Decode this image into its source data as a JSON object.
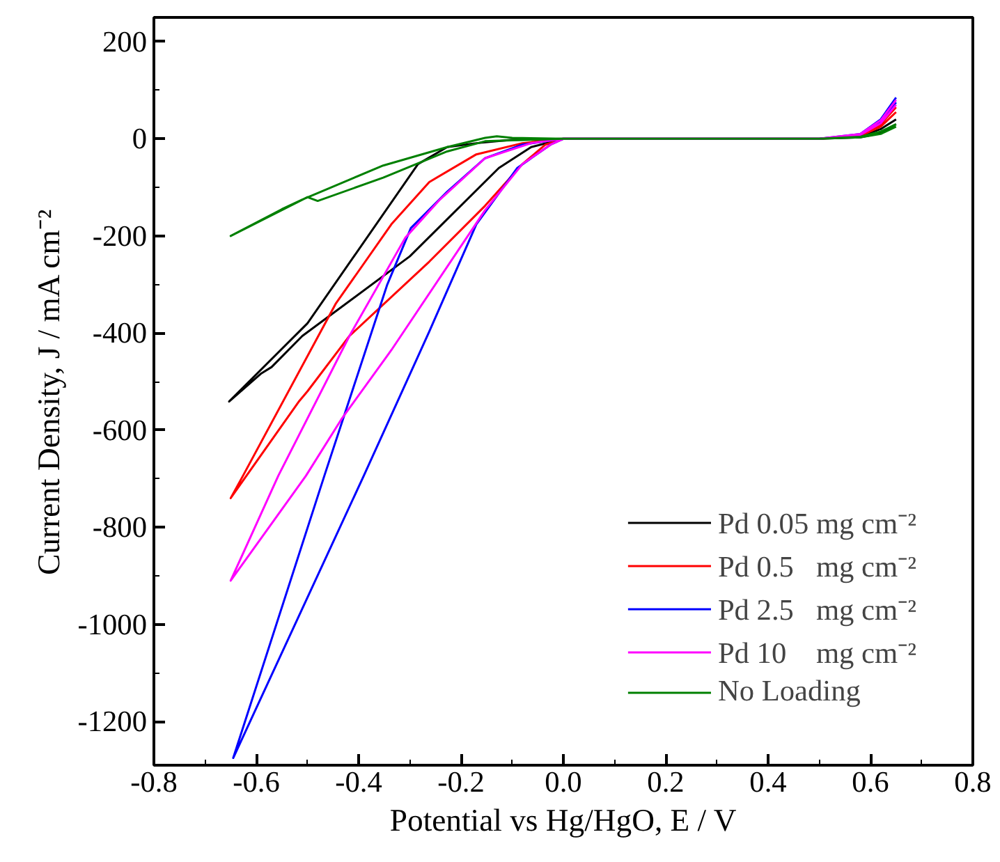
{
  "chart_data": {
    "type": "line",
    "xlabel": "Potential vs Hg/HgO, E / V",
    "ylabel": "Current Density, J / mA cm⁻²",
    "xlim": [
      -0.8,
      0.8
    ],
    "xticks": [
      -0.8,
      -0.6,
      -0.4,
      -0.2,
      {
        "value": 0,
        "label": "0.0"
      },
      0.2,
      0.4,
      0.6,
      0.8
    ],
    "ylim": [
      -1290,
      250
    ],
    "yticks": [
      200,
      0,
      -200,
      -400,
      -600,
      -800,
      -1000,
      -1200
    ],
    "grid": false,
    "legend": "bottom right",
    "line_style": "solid",
    "marker": "none",
    "series": [
      {
        "name": "Pd 0.05 mg cm⁻²",
        "color": "#000000",
        "x": [
          0.65,
          0.62,
          0.58,
          0.5,
          0.0,
          -0.063,
          -0.126,
          -0.3,
          -0.51,
          -0.57,
          -0.59,
          -0.653,
          -0.5,
          -0.284,
          -0.227,
          -0.17,
          -0.1,
          0.0,
          0.5,
          0.58,
          0.62,
          0.65
        ],
        "values": [
          40,
          20,
          5,
          0,
          0,
          -17,
          -60,
          -242,
          -406,
          -470,
          -483,
          -541,
          -380,
          -52,
          -17,
          -9,
          -2,
          0,
          0,
          3,
          12,
          30
        ]
      },
      {
        "name": "Pd 0.5   mg cm⁻²",
        "color": "#ff0000",
        "x": [
          0.65,
          0.62,
          0.58,
          0.5,
          0.0,
          -0.035,
          -0.08,
          -0.153,
          -0.262,
          -0.418,
          -0.5,
          -0.516,
          -0.65,
          -0.626,
          -0.445,
          -0.336,
          -0.262,
          -0.17,
          -0.08,
          0.0,
          0.5,
          0.58,
          0.62,
          0.65
        ],
        "values": [
          65,
          30,
          8,
          0,
          0,
          -12,
          -52,
          -138,
          -253,
          -406,
          -520,
          -540,
          -740,
          -694,
          -340,
          -176,
          -89,
          -32,
          -9,
          0,
          0,
          6,
          25,
          55
        ]
      },
      {
        "name": "Pd 2.5   mg cm⁻²",
        "color": "#0000ff",
        "x": [
          0.65,
          0.62,
          0.58,
          0.5,
          0.0,
          -0.025,
          -0.09,
          -0.17,
          -0.262,
          -0.39,
          -0.645,
          -0.467,
          -0.344,
          -0.298,
          -0.227,
          -0.153,
          -0.08,
          0.0,
          0.5,
          0.58,
          0.62,
          0.65
        ],
        "values": [
          85,
          40,
          10,
          0,
          0,
          -12,
          -60,
          -176,
          -397,
          -694,
          -1275,
          -694,
          -300,
          -184,
          -109,
          -40,
          -12,
          0,
          0,
          8,
          35,
          75
        ]
      },
      {
        "name": "Pd 10    mg cm⁻²",
        "color": "#ff00ff",
        "x": [
          0.65,
          0.62,
          0.58,
          0.5,
          0.0,
          -0.025,
          -0.08,
          -0.153,
          -0.336,
          -0.434,
          -0.503,
          -0.65,
          -0.557,
          -0.418,
          -0.309,
          -0.243,
          -0.153,
          -0.063,
          0.0,
          0.5,
          0.58,
          0.62,
          0.65
        ],
        "values": [
          80,
          38,
          10,
          0,
          0,
          -12,
          -52,
          -147,
          -435,
          -578,
          -694,
          -910,
          -694,
          -406,
          -204,
          -127,
          -40,
          -9,
          0,
          0,
          8,
          32,
          70
        ]
      },
      {
        "name": "No Loading",
        "color": "#008000",
        "x": [
          0.65,
          0.62,
          0.58,
          0.5,
          0.0,
          -0.1,
          -0.153,
          -0.227,
          -0.352,
          -0.48,
          -0.5,
          -0.65,
          -0.55,
          -0.51,
          -0.352,
          -0.227,
          -0.153,
          -0.13,
          -0.1,
          0.0,
          0.5,
          0.58,
          0.62,
          0.65
        ],
        "values": [
          30,
          15,
          4,
          0,
          0,
          -3,
          -5,
          -26,
          -80,
          -128,
          -120,
          -200,
          -145,
          -125,
          -55,
          -17,
          2,
          5,
          2,
          0,
          0,
          3,
          10,
          25
        ]
      }
    ]
  }
}
